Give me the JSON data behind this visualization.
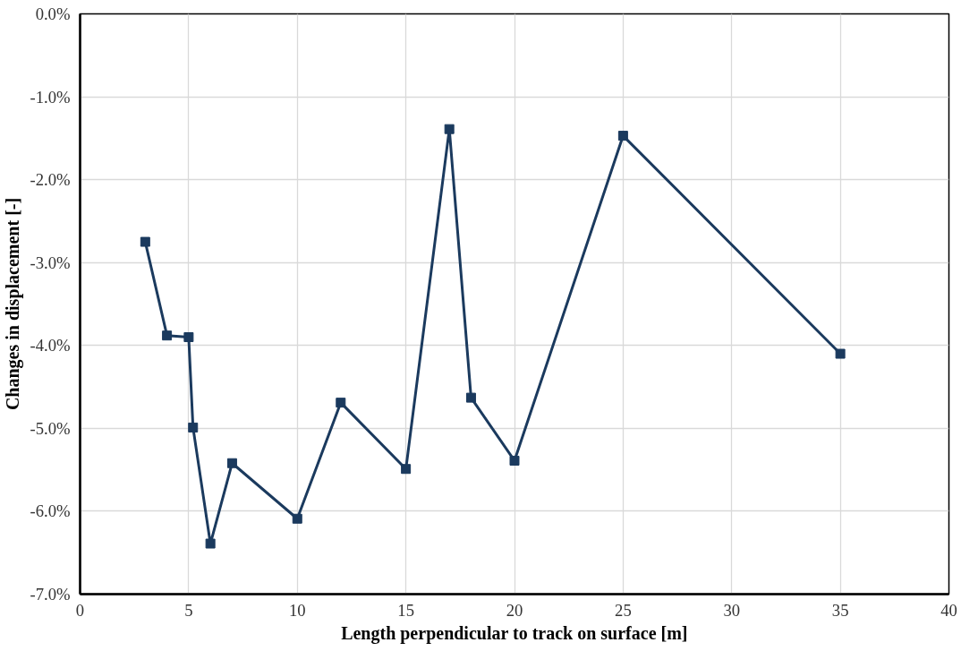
{
  "chart_data": {
    "type": "line",
    "xlabel": "Length perpendicular to track on surface [m]",
    "ylabel": "Changes in displacement [-]",
    "x": [
      3,
      4,
      5,
      5.2,
      6,
      7,
      10,
      12,
      15,
      17,
      18,
      20,
      25,
      35
    ],
    "series": [
      {
        "color": "#1b3a5e",
        "values": [
          -2.75,
          -3.88,
          -3.9,
          -4.99,
          -6.39,
          -5.42,
          -6.09,
          -4.69,
          -5.49,
          -1.39,
          -4.63,
          -5.39,
          -1.47,
          -4.1
        ]
      }
    ],
    "xlim": [
      0,
      40
    ],
    "xticks": [
      0,
      5,
      10,
      15,
      20,
      25,
      30,
      35,
      40
    ],
    "ylim": [
      -7,
      0
    ],
    "yticks": [
      {
        "value": 0,
        "label": "0.0%"
      },
      {
        "value": -1,
        "label": "-1.0%"
      },
      {
        "value": -2,
        "label": "-2.0%"
      },
      {
        "value": -3,
        "label": "-3.0%"
      },
      {
        "value": -4,
        "label": "-4.0%"
      },
      {
        "value": -5,
        "label": "-5.0%"
      },
      {
        "value": -6,
        "label": "-6.0%"
      },
      {
        "value": -7,
        "label": "-7.0%"
      }
    ],
    "grid": true,
    "marker": "square",
    "line_style": "solid"
  }
}
